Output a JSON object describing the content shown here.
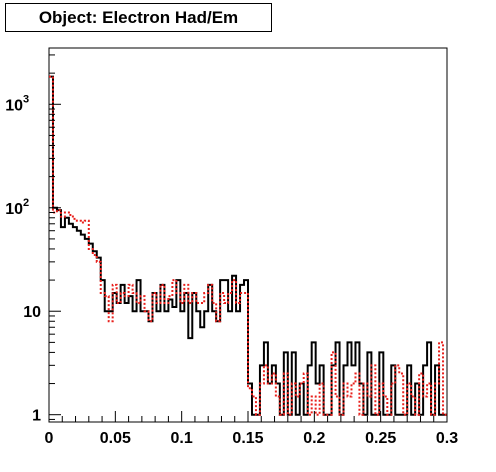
{
  "chart_data": {
    "type": "histogram",
    "title": "Object: Electron Had/Em",
    "xlabel": "",
    "ylabel": "",
    "xlim": [
      0,
      0.3
    ],
    "ylim": [
      0.85,
      3500
    ],
    "y_scale": "log",
    "grid": false,
    "bin_width": 0.003,
    "x_ticks": [
      {
        "value": 0,
        "label": "0"
      },
      {
        "value": 0.05,
        "label": "0.05"
      },
      {
        "value": 0.1,
        "label": "0.1"
      },
      {
        "value": 0.15,
        "label": "0.15"
      },
      {
        "value": 0.2,
        "label": "0.2"
      },
      {
        "value": 0.25,
        "label": "0.25"
      },
      {
        "value": 0.3,
        "label": "0.3"
      }
    ],
    "y_ticks": [
      {
        "value": 1,
        "base": "1",
        "exp": ""
      },
      {
        "value": 10,
        "base": "10",
        "exp": ""
      },
      {
        "value": 100,
        "base": "10",
        "exp": "2"
      },
      {
        "value": 1000,
        "base": "10",
        "exp": "3"
      }
    ],
    "series": [
      {
        "color": "#000000",
        "style": "solid",
        "values": [
          1850,
          100,
          95,
          65,
          80,
          70,
          65,
          60,
          55,
          50,
          45,
          38,
          33,
          20,
          10,
          10,
          15,
          12,
          18,
          12,
          14,
          10,
          20,
          10,
          10,
          8,
          15,
          10,
          18,
          10,
          13,
          11,
          20,
          10,
          15,
          5.5,
          15,
          10,
          7,
          10,
          18,
          10,
          8,
          20,
          20,
          10,
          22,
          10,
          18,
          20,
          2,
          1,
          1,
          3,
          5,
          2,
          3,
          2,
          1,
          4,
          1,
          4,
          1,
          2,
          1,
          3,
          5,
          2,
          3,
          1,
          1,
          3,
          5,
          1,
          3,
          5,
          3,
          5,
          2,
          1,
          4,
          1,
          1,
          4,
          1,
          1,
          3,
          1,
          1,
          1,
          3,
          1,
          2,
          1,
          3,
          5,
          1,
          3,
          1,
          1
        ]
      },
      {
        "color": "#e8201c",
        "style": "dotted",
        "values": [
          1850,
          90,
          95,
          82,
          90,
          85,
          78,
          75,
          72,
          75,
          40,
          35,
          30,
          15,
          14,
          8,
          18,
          12,
          15,
          14,
          18,
          15,
          12,
          14,
          10,
          8,
          15,
          12,
          18,
          12,
          14,
          20,
          15,
          12,
          18,
          12,
          15,
          12,
          12,
          15,
          18,
          12,
          8,
          15,
          12,
          15,
          20,
          12,
          15,
          15,
          1.8,
          1.5,
          1,
          2,
          3,
          2,
          2.5,
          1.5,
          1,
          2.5,
          1,
          2,
          1.5,
          2,
          2.5,
          1,
          1.5,
          1,
          2,
          1,
          1,
          4,
          1.5,
          1,
          2,
          1.5,
          2,
          2.5,
          1,
          2,
          1.5,
          3,
          1,
          2,
          1.5,
          1,
          2,
          3,
          2.5,
          1,
          2,
          1.5,
          1,
          2.5,
          1.5,
          2,
          1,
          2,
          5,
          1
        ]
      }
    ]
  }
}
